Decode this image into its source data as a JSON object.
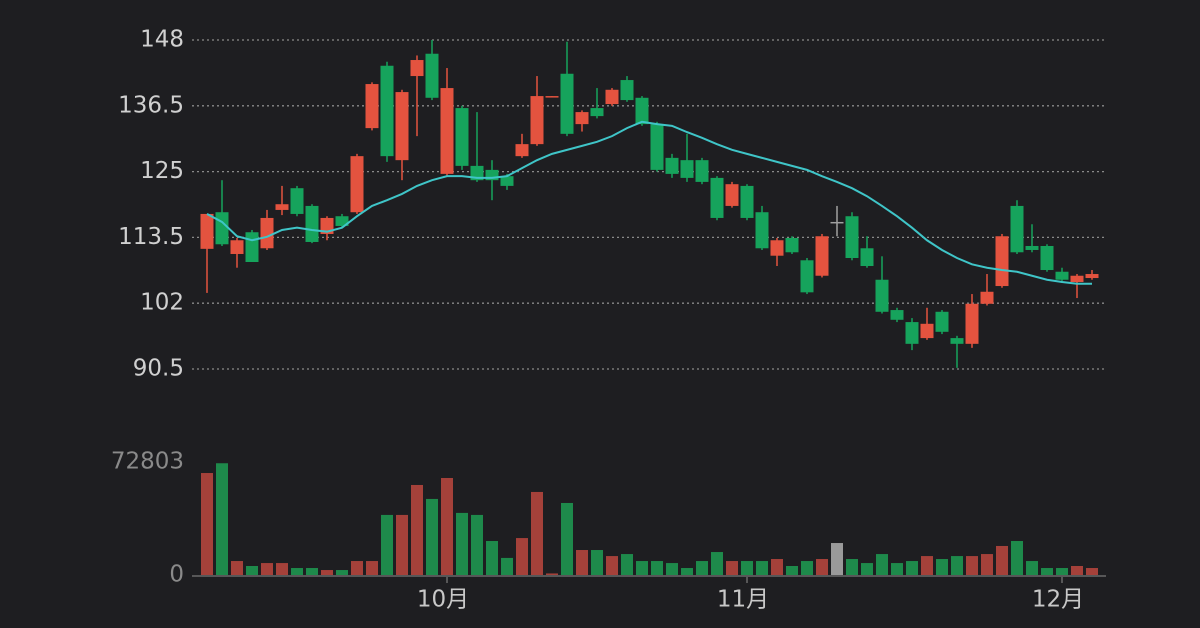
{
  "chart_data": {
    "type": "candlestick",
    "categories": [
      null,
      null,
      null,
      null,
      null,
      null,
      null,
      null,
      null,
      null,
      null,
      null,
      null,
      null,
      null,
      null,
      "10月",
      null,
      null,
      null,
      null,
      null,
      null,
      null,
      null,
      null,
      null,
      null,
      null,
      null,
      null,
      null,
      null,
      null,
      null,
      null,
      "11月",
      null,
      null,
      null,
      null,
      null,
      null,
      null,
      null,
      null,
      null,
      null,
      null,
      null,
      null,
      null,
      null,
      null,
      null,
      null,
      null,
      "12月",
      null,
      null
    ],
    "open": [
      111.5,
      117.9,
      110.6,
      114.4,
      111.6,
      118.3,
      122.1,
      119.0,
      114.1,
      117.2,
      117.9,
      132.6,
      143.5,
      127.0,
      141.7,
      145.6,
      124.6,
      136.1,
      126.0,
      125.3,
      124.2,
      127.7,
      129.8,
      138.0,
      142.1,
      133.3,
      136.1,
      136.8,
      141.0,
      137.9,
      133.3,
      127.4,
      127.0,
      127.0,
      123.9,
      119.0,
      122.5,
      117.9,
      110.3,
      113.4,
      109.5,
      106.8,
      116.2,
      117.2,
      111.6,
      106.1,
      100.8,
      98.7,
      95.9,
      100.5,
      95.9,
      94.9,
      101.9,
      105.0,
      119.0,
      112.0,
      112.0,
      107.5,
      105.7,
      106.4
    ],
    "high": [
      117.6,
      123.5,
      113.4,
      114.8,
      118.3,
      122.5,
      122.5,
      119.3,
      117.2,
      117.6,
      128.1,
      140.6,
      144.2,
      139.3,
      145.3,
      148.0,
      143.1,
      136.5,
      135.4,
      127.0,
      124.6,
      131.6,
      141.7,
      138.2,
      147.7,
      135.7,
      139.6,
      139.6,
      141.7,
      138.2,
      133.7,
      128.1,
      131.6,
      127.4,
      124.2,
      123.2,
      122.8,
      119.0,
      113.4,
      113.7,
      109.9,
      114.1,
      119.0,
      117.9,
      113.7,
      110.2,
      101.2,
      99.4,
      101.2,
      100.8,
      96.3,
      103.6,
      107.1,
      114.1,
      120.0,
      115.8,
      112.3,
      108.2,
      107.1,
      107.8
    ],
    "low": [
      103.8,
      112.0,
      108.2,
      109.2,
      111.3,
      117.4,
      117.2,
      112.5,
      113.0,
      115.2,
      117.6,
      132.2,
      126.7,
      123.5,
      131.2,
      137.5,
      124.2,
      125.3,
      123.2,
      120.0,
      121.8,
      127.4,
      129.5,
      138.0,
      131.2,
      132.0,
      134.3,
      136.5,
      137.2,
      133.0,
      125.0,
      123.9,
      123.2,
      122.8,
      116.5,
      118.7,
      116.5,
      111.3,
      108.5,
      110.6,
      103.6,
      106.5,
      113.7,
      109.5,
      108.2,
      100.2,
      98.7,
      93.8,
      95.6,
      96.6,
      90.7,
      94.2,
      101.6,
      104.7,
      110.6,
      110.9,
      107.5,
      105.7,
      102.9,
      106.1
    ],
    "close": [
      117.6,
      112.3,
      113.0,
      109.2,
      116.9,
      119.3,
      117.6,
      112.7,
      116.9,
      115.5,
      127.7,
      140.3,
      127.7,
      138.9,
      144.5,
      137.9,
      139.6,
      126.0,
      123.5,
      123.5,
      122.5,
      129.8,
      138.2,
      138.2,
      131.6,
      135.4,
      134.7,
      139.3,
      137.5,
      133.3,
      125.3,
      124.6,
      123.9,
      123.2,
      116.9,
      122.8,
      116.9,
      111.6,
      113.0,
      110.9,
      103.9,
      113.7,
      116.2,
      109.9,
      108.5,
      100.5,
      99.1,
      94.9,
      98.4,
      97.0,
      94.9,
      101.9,
      104.0,
      113.7,
      110.9,
      111.3,
      107.8,
      106.1,
      106.8,
      107.1
    ],
    "colors": {
      "up": "#e4533f",
      "down": "#16a35c",
      "flat": "#a0a0a0"
    },
    "ylim": [
      90.5,
      148
    ],
    "yticks": [
      90.5,
      102,
      113.5,
      125,
      136.5,
      148
    ],
    "grid": true,
    "ma": {
      "color": "#3fc5c8",
      "values": [
        117.6,
        116.2,
        113.7,
        113.0,
        113.6,
        114.8,
        115.2,
        114.8,
        114.5,
        115.2,
        117.2,
        119.0,
        120.0,
        121.1,
        122.5,
        123.5,
        124.2,
        124.2,
        123.9,
        123.9,
        124.2,
        125.6,
        127.0,
        128.1,
        128.8,
        129.5,
        130.2,
        131.2,
        132.6,
        133.7,
        133.3,
        133.0,
        131.9,
        130.9,
        129.8,
        128.8,
        128.1,
        127.4,
        126.7,
        126.0,
        125.3,
        124.2,
        123.2,
        122.1,
        120.7,
        119.0,
        117.2,
        115.2,
        113.0,
        111.3,
        109.9,
        108.8,
        108.2,
        107.8,
        107.5,
        106.8,
        106.1,
        105.7,
        105.4,
        105.4
      ]
    },
    "volume": {
      "values": [
        65700,
        72000,
        9000,
        5800,
        7700,
        7700,
        4500,
        4500,
        3200,
        3200,
        9000,
        9000,
        38700,
        38700,
        58000,
        49000,
        62500,
        40000,
        38700,
        21900,
        11000,
        23800,
        53500,
        1000,
        46400,
        16100,
        16100,
        12200,
        13500,
        9000,
        9000,
        7700,
        4500,
        9000,
        14800,
        9000,
        9000,
        9000,
        10300,
        5800,
        9000,
        10300,
        20600,
        10300,
        7700,
        13500,
        7700,
        9000,
        12200,
        10300,
        12200,
        12200,
        13500,
        18700,
        21900,
        9000,
        4500,
        4500,
        5800,
        4500
      ],
      "ylim": [
        0,
        72803
      ],
      "yticks": [
        0,
        72803
      ],
      "colors": {
        "up": "#a5413a",
        "down": "#1e8a4b",
        "flat": "#9a9a9a"
      }
    }
  }
}
